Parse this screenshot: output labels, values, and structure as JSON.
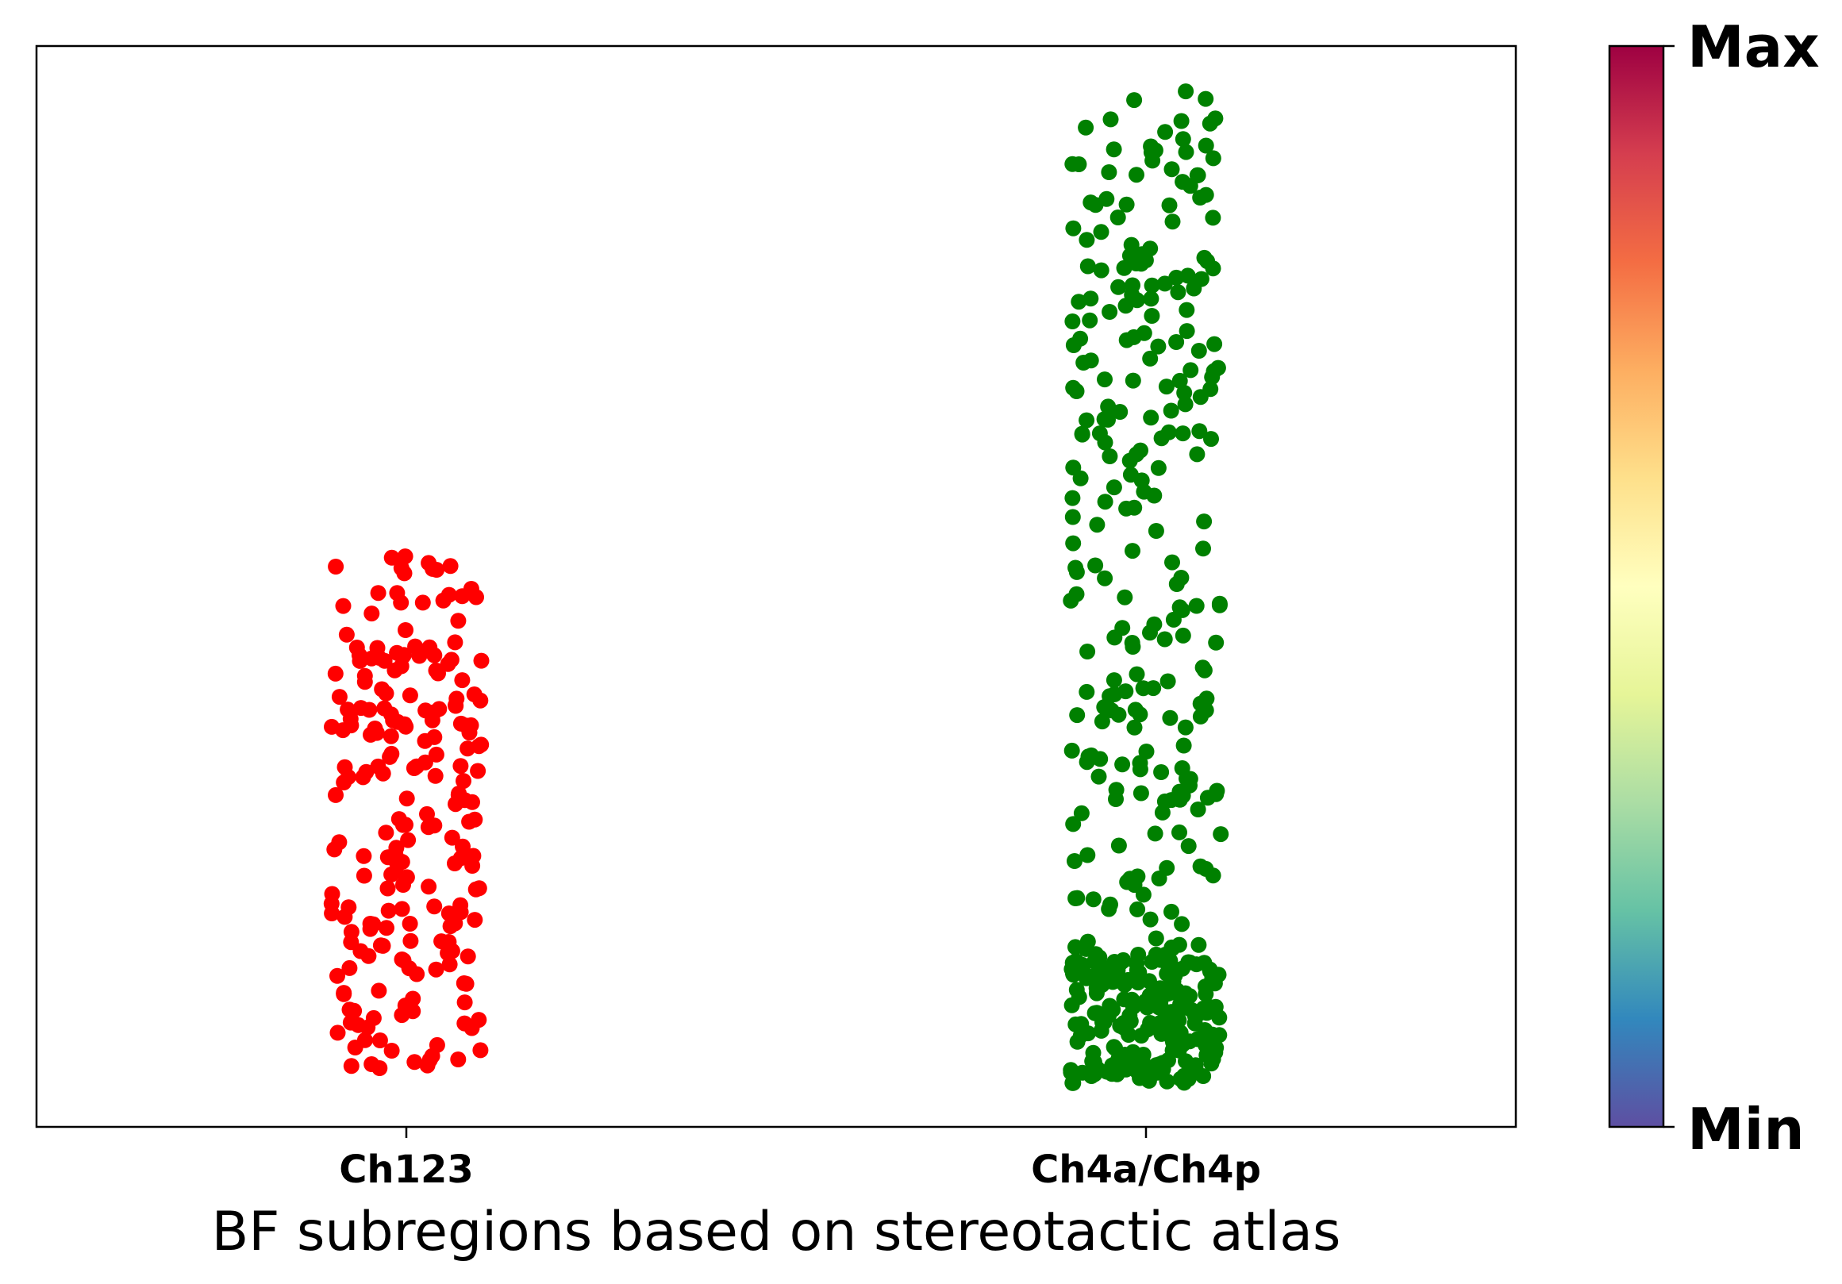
{
  "chart_data": {
    "type": "scatter",
    "title": "",
    "xlabel": "BF subregions based on stereotactic atlas",
    "ylabel": "",
    "categories": [
      "Ch123",
      "Ch4a/Ch4p"
    ],
    "ylim": [
      0,
      1
    ],
    "grid": false,
    "series": [
      {
        "category": "Ch123",
        "color": "#ff0000",
        "count": 220,
        "y_range": [
          0.05,
          0.53
        ]
      },
      {
        "category": "Ch4a/Ch4p",
        "color": "#008000",
        "count": 480,
        "y_range": [
          0.04,
          0.96
        ]
      }
    ],
    "colorbar": {
      "max_label": "Max",
      "min_label": "Min",
      "colormap": [
        "#5e4fa2",
        "#3288bd",
        "#66c2a5",
        "#abdda4",
        "#e6f598",
        "#ffffbf",
        "#fee08b",
        "#fdae61",
        "#f46d43",
        "#d53e4f",
        "#9e0142"
      ]
    }
  }
}
